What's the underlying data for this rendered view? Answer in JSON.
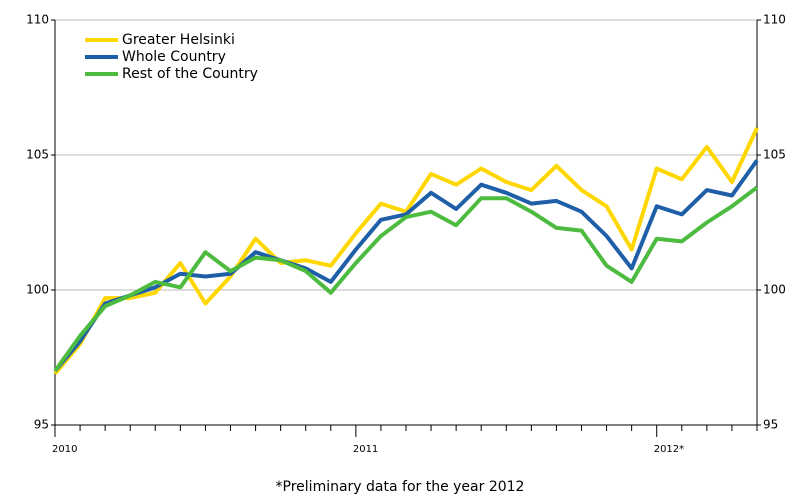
{
  "chart_data": {
    "type": "line",
    "note": "*Preliminary data for the year 2012",
    "categories": [
      "2010",
      null,
      null,
      null,
      null,
      null,
      null,
      null,
      null,
      null,
      null,
      null,
      "2011",
      null,
      null,
      null,
      null,
      null,
      null,
      null,
      null,
      null,
      null,
      null,
      "2012*",
      null,
      null,
      null,
      null
    ],
    "ylim": [
      95,
      110
    ],
    "yticks": [
      95,
      100,
      105,
      110
    ],
    "grid": true,
    "legend": "top-left",
    "series": [
      {
        "name": "Greater Helsinki",
        "color": "#ffd700",
        "values": [
          96.9,
          98.0,
          99.7,
          99.7,
          99.9,
          101.0,
          99.5,
          100.5,
          101.9,
          101.0,
          101.1,
          100.9,
          102.1,
          103.2,
          102.9,
          104.3,
          103.9,
          104.5,
          104.0,
          103.7,
          104.6,
          103.7,
          103.1,
          101.5,
          104.5,
          104.1,
          105.3,
          104.0,
          106.0
        ]
      },
      {
        "name": "Whole Country",
        "color": "#1f5fa8",
        "values": [
          97.0,
          98.1,
          99.5,
          99.8,
          100.1,
          100.6,
          100.5,
          100.6,
          101.4,
          101.1,
          100.8,
          100.3,
          101.5,
          102.6,
          102.8,
          103.6,
          103.0,
          103.9,
          103.6,
          103.2,
          103.3,
          102.9,
          102.0,
          100.8,
          103.1,
          102.8,
          103.7,
          103.5,
          104.8
        ]
      },
      {
        "name": "Rest of the Country",
        "color": "#4dbb3f",
        "values": [
          97.0,
          98.3,
          99.4,
          99.8,
          100.3,
          100.1,
          101.4,
          100.7,
          101.2,
          101.1,
          100.7,
          99.9,
          101.0,
          102.0,
          102.7,
          102.9,
          102.4,
          103.4,
          103.4,
          102.9,
          102.3,
          102.2,
          100.9,
          100.3,
          101.9,
          101.8,
          102.5,
          103.1,
          103.8
        ]
      }
    ]
  }
}
